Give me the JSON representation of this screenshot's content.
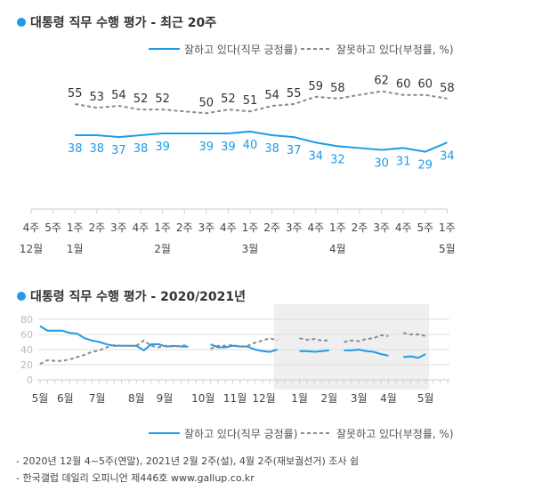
{
  "colors": {
    "approve": "#1e9be8",
    "disapprove": "#8a8a8a",
    "title_dot": "#1e9be8",
    "shade": "#efefef"
  },
  "legend": {
    "approve": "잘하고 있다(직무 긍정률)",
    "disapprove": "잘못하고 있다(부정률, %)"
  },
  "footnotes": [
    "- 2020년 12월 4~5주(연말), 2021년 2월 2주(설), 4월 2주(재보궐선거) 조사 쉼",
    "- 한국갤럽 데일리 오피니언 제446호 www.gallup.co.kr"
  ],
  "chart_data": [
    {
      "type": "line",
      "title": "대통령 직무 수행 평가 - 최근 20주",
      "week_labels": [
        "4주",
        "5주",
        "1주",
        "2주",
        "3주",
        "4주",
        "1주",
        "2주",
        "3주",
        "4주",
        "1주",
        "2주",
        "3주",
        "4주",
        "1주",
        "2주",
        "3주",
        "4주",
        "5주",
        "1주"
      ],
      "month_labels": [
        {
          "at": 0,
          "label": "12월"
        },
        {
          "at": 2,
          "label": "1월"
        },
        {
          "at": 6,
          "label": "2월"
        },
        {
          "at": 10,
          "label": "3월"
        },
        {
          "at": 14,
          "label": "4월"
        },
        {
          "at": 19,
          "label": "5월"
        }
      ],
      "series": [
        {
          "name": "잘하고 있다(직무 긍정률)",
          "values": [
            null,
            null,
            38,
            38,
            37,
            38,
            39,
            null,
            39,
            39,
            40,
            38,
            37,
            34,
            32,
            null,
            30,
            31,
            29,
            34
          ]
        },
        {
          "name": "잘못하고 있다(부정률, %)",
          "values": [
            null,
            null,
            55,
            53,
            54,
            52,
            52,
            null,
            50,
            52,
            51,
            54,
            55,
            59,
            58,
            null,
            62,
            60,
            60,
            58
          ]
        }
      ],
      "grid": false
    },
    {
      "type": "line",
      "title": "대통령 직무 수행 평가 - 2020/2021년",
      "yticks": [
        "0",
        "20",
        "40",
        "60",
        "80"
      ],
      "ylim": [
        0,
        80
      ],
      "month_labels": [
        {
          "at": 0,
          "label": "5월"
        },
        {
          "at": 3.4,
          "label": "6월"
        },
        {
          "at": 7.7,
          "label": "7월"
        },
        {
          "at": 13,
          "label": "8월"
        },
        {
          "at": 16.8,
          "label": "9월"
        },
        {
          "at": 22,
          "label": "10월"
        },
        {
          "at": 26.3,
          "label": "11월"
        },
        {
          "at": 30.2,
          "label": "12월"
        },
        {
          "at": 35,
          "label": "1월"
        },
        {
          "at": 39,
          "label": "2월"
        },
        {
          "at": 43,
          "label": "3월"
        },
        {
          "at": 47,
          "label": "4월"
        },
        {
          "at": 52,
          "label": "5월"
        }
      ],
      "shaded_from_week": 32,
      "series": [
        {
          "name": "잘하고 있다(직무 긍정률)",
          "values": [
            71,
            65,
            65,
            65,
            62,
            61,
            55,
            52,
            50,
            47,
            45,
            45,
            45,
            45,
            39,
            47,
            47,
            44,
            45,
            44,
            44,
            null,
            null,
            47,
            43,
            43,
            45,
            44,
            44,
            40,
            38,
            37,
            40,
            null,
            null,
            38,
            38,
            37,
            38,
            39,
            null,
            39,
            39,
            40,
            38,
            37,
            34,
            32,
            null,
            30,
            31,
            29,
            34
          ]
        },
        {
          "name": "잘못하고 있다(부정률, %)",
          "values": [
            21,
            26,
            25,
            25,
            27,
            30,
            33,
            37,
            39,
            43,
            46,
            45,
            45,
            45,
            52,
            45,
            43,
            45,
            44,
            45,
            46,
            null,
            null,
            41,
            45,
            45,
            46,
            44,
            45,
            49,
            52,
            55,
            52,
            null,
            null,
            55,
            53,
            54,
            52,
            52,
            null,
            50,
            52,
            51,
            54,
            55,
            59,
            58,
            null,
            62,
            60,
            60,
            58
          ]
        }
      ],
      "grid": true
    }
  ]
}
